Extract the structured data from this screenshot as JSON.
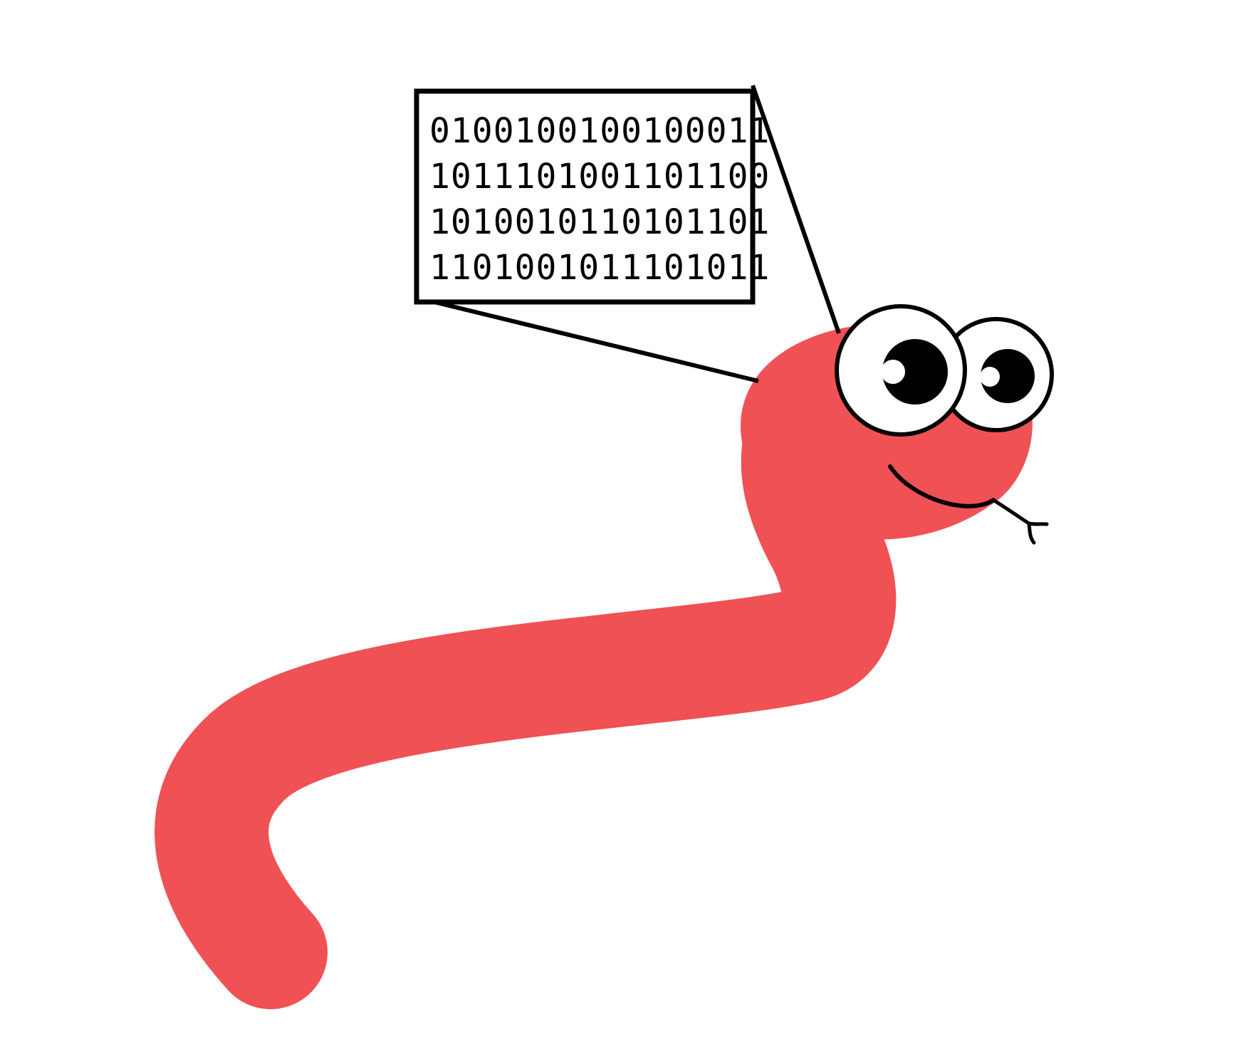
{
  "illustration": {
    "subject": "snake",
    "colors": {
      "body": "#f05155",
      "outline": "#000000",
      "eye_white": "#ffffff",
      "pupil": "#000000",
      "background": "#ffffff"
    }
  },
  "bubble": {
    "lines": [
      "0100100100100011",
      "1011101001101100",
      "1010010110101101",
      "1101001011101011"
    ]
  }
}
